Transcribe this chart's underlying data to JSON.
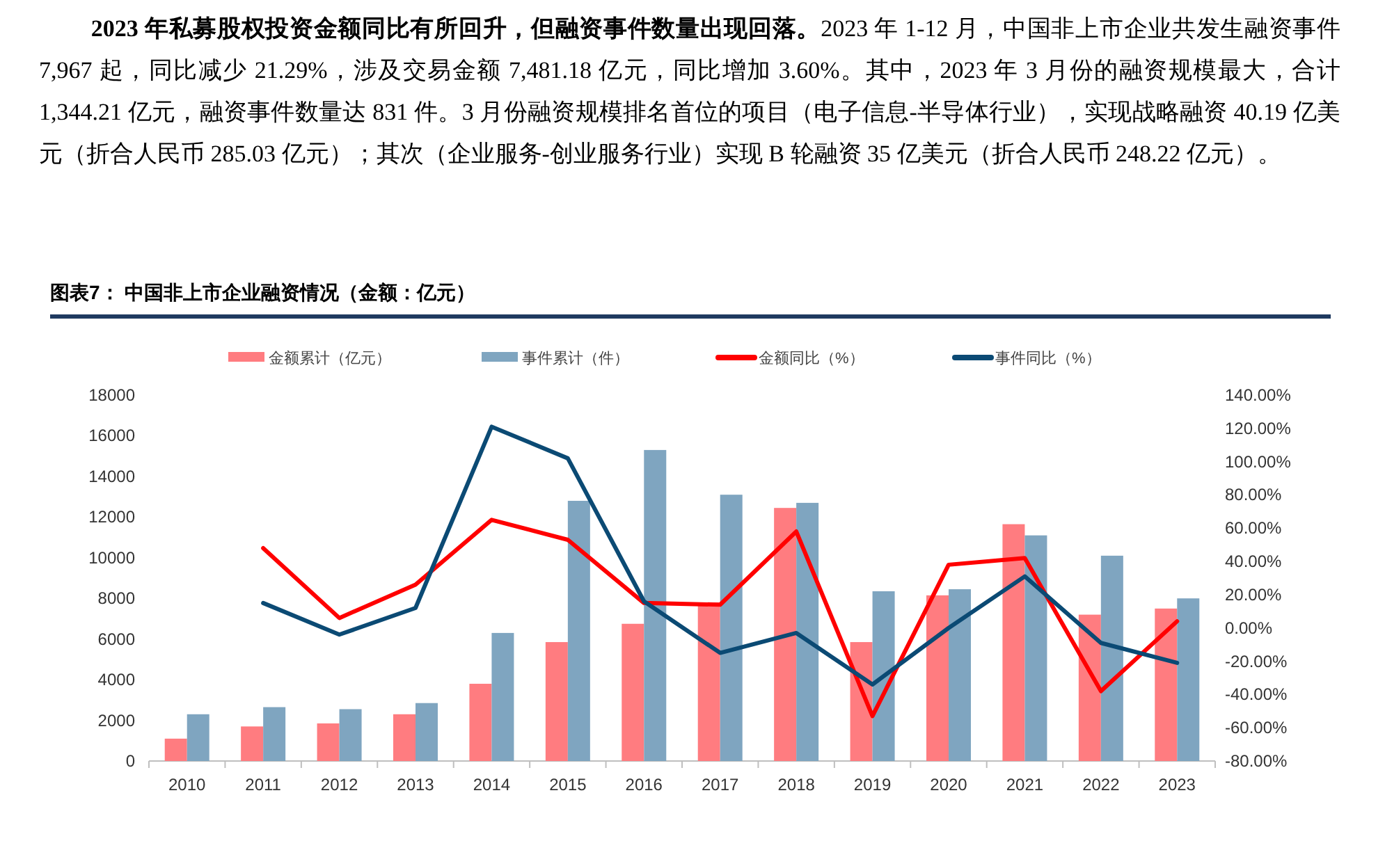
{
  "chart_data": {
    "type": "bar",
    "title": "图表7：  中国非上市企业融资情况（金额：亿元）",
    "annotations": [
      "**2023 年私募股权投资金额同比有所回升，但融资事件数量出现回落。**2023 年 1-12 月，中国非上市企业共发生融资事件 7,967 起，同比减少 21.29%，涉及交易金额 7,481.18 亿元，同比增加 3.60%。其中，2023 年 3 月份的融资规模最大，合计 1,344.21 亿元，融资事件数量达 831 件。3 月份融资规模排名首位的项目（电子信息-半导体行业），实现战略融资 40.19 亿美元（折合人民币 285.03 亿元）；其次（企业服务-创业服务行业）实现 B 轮融资 35 亿美元（折合人民币 248.22 亿元）。"
    ],
    "categories": [
      "2010",
      "2011",
      "2012",
      "2013",
      "2014",
      "2015",
      "2016",
      "2017",
      "2018",
      "2019",
      "2020",
      "2021",
      "2022",
      "2023"
    ],
    "series": [
      {
        "name": "金额累计（亿元）",
        "color": "#ff7c80",
        "values": [
          1100,
          1700,
          1850,
          2300,
          3800,
          5850,
          6750,
          7800,
          12450,
          5850,
          8150,
          11650,
          7200,
          7500
        ]
      },
      {
        "name": "事件累计（件）",
        "color": "#7fa5c0",
        "values": [
          2300,
          2650,
          2550,
          2850,
          6300,
          12800,
          15300,
          13100,
          12700,
          8350,
          8450,
          11100,
          10100,
          8000
        ]
      },
      {
        "name": "金额同比（%）",
        "type": "line",
        "axis": "y2",
        "color": "#ff0000",
        "values": [
          null,
          48,
          6,
          26,
          65,
          53,
          15,
          14,
          58,
          -53,
          38,
          42,
          -38,
          4
        ]
      },
      {
        "name": "事件同比（%）",
        "type": "line",
        "axis": "y2",
        "color": "#0b4a74",
        "values": [
          null,
          15,
          -4,
          12,
          121,
          102,
          16,
          -15,
          -3,
          -34,
          0,
          31,
          -9,
          -21
        ]
      }
    ],
    "ylim": [
      0,
      18000
    ],
    "yticks": [
      0,
      2000,
      4000,
      6000,
      8000,
      10000,
      12000,
      14000,
      16000,
      18000
    ],
    "y2lim": [
      -80,
      140
    ],
    "y2ticks": [
      {
        "value": -80,
        "label": "-80.00%"
      },
      {
        "value": -60,
        "label": "-60.00%"
      },
      {
        "value": -40,
        "label": "-40.00%"
      },
      {
        "value": -20,
        "label": "-20.00%"
      },
      {
        "value": 0,
        "label": "0.00%"
      },
      {
        "value": 20,
        "label": "20.00%"
      },
      {
        "value": 40,
        "label": "40.00%"
      },
      {
        "value": 60,
        "label": "60.00%"
      },
      {
        "value": 80,
        "label": "80.00%"
      },
      {
        "value": 100,
        "label": "100.00%"
      },
      {
        "value": 120,
        "label": "120.00%"
      },
      {
        "value": 140,
        "label": "140.00%"
      }
    ],
    "legend": "top"
  }
}
